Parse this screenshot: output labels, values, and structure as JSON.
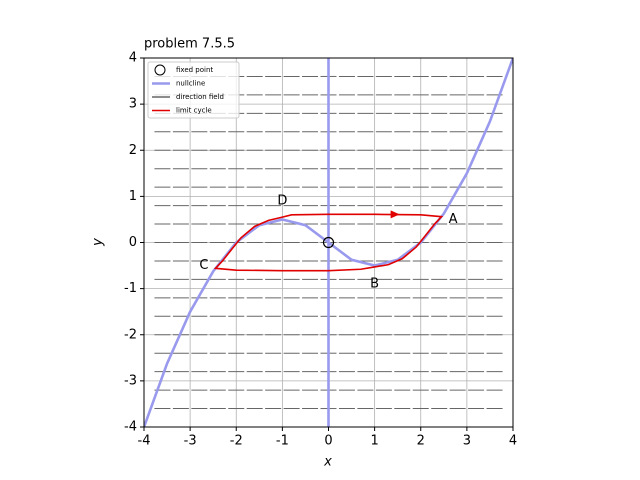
{
  "chart_data": {
    "type": "phase",
    "title": "problem 7.5.5",
    "x_label": "x",
    "y_label": "y",
    "xlim": [
      -4,
      4
    ],
    "ylim": [
      -4,
      4
    ],
    "xticks": [
      -4,
      -3,
      -2,
      -1,
      0,
      1,
      2,
      3,
      4
    ],
    "yticks": [
      -4,
      -3,
      -2,
      -1,
      0,
      1,
      2,
      3,
      4
    ],
    "grid": true,
    "legend": "upper left",
    "series": [
      {
        "name": "fixed point",
        "color": "#000000",
        "x": [
          0
        ],
        "y": [
          0
        ]
      },
      {
        "name": "nullcline",
        "color": "#9999ee",
        "x": [
          -4,
          -3.5,
          -3,
          -2.5,
          -2,
          -1.5,
          -1,
          -0.5,
          0,
          0.5,
          1,
          1.5,
          2,
          2.5,
          3,
          3.5,
          4,
          null,
          0,
          0
        ],
        "y": [
          -4,
          -2.625,
          -1.5,
          -0.625,
          0,
          0.375,
          0.5,
          0.375,
          0,
          -0.375,
          -0.5,
          -0.375,
          0,
          0.625,
          1.5,
          2.625,
          4,
          null,
          -4,
          4
        ]
      },
      {
        "name": "direction field",
        "color": "#666666",
        "x": [
          -3.6,
          -3.2,
          -2.8,
          -2.4,
          -2,
          -1.6,
          -1.2,
          -0.8,
          -0.4,
          0,
          0.4,
          0.8,
          1.2,
          1.6,
          2,
          2.4,
          2.8,
          3.2,
          3.6
        ],
        "y": [
          -3.6,
          -3.2,
          -2.8,
          -2.4,
          -2,
          -1.6,
          -1.2,
          -0.8,
          -0.4,
          0,
          0.4,
          0.8,
          1.2,
          1.6,
          2,
          2.4,
          2.8,
          3.2,
          3.6
        ]
      },
      {
        "name": "limit cycle",
        "color": "#e00000",
        "x": [
          -0.8,
          0,
          1,
          2,
          2.45,
          2.3,
          2.1,
          1.9,
          1.6,
          1.3,
          1,
          0.7,
          0,
          -1,
          -2,
          -2.45,
          -2.3,
          -2.1,
          -1.9,
          -1.6,
          -1.3,
          -1,
          -0.8
        ],
        "y": [
          0.6,
          0.61,
          0.61,
          0.6,
          0.56,
          0.4,
          0.15,
          -0.1,
          -0.35,
          -0.48,
          -0.53,
          -0.58,
          -0.61,
          -0.61,
          -0.6,
          -0.56,
          -0.4,
          -0.15,
          0.1,
          0.35,
          0.48,
          0.55,
          0.6
        ]
      }
    ],
    "annotations": [
      {
        "text": "A",
        "x": 2.7,
        "y": 0.5
      },
      {
        "text": "B",
        "x": 1,
        "y": -0.9
      },
      {
        "text": "C",
        "x": -2.7,
        "y": -0.5
      },
      {
        "text": "D",
        "x": -1,
        "y": 0.9
      }
    ]
  }
}
